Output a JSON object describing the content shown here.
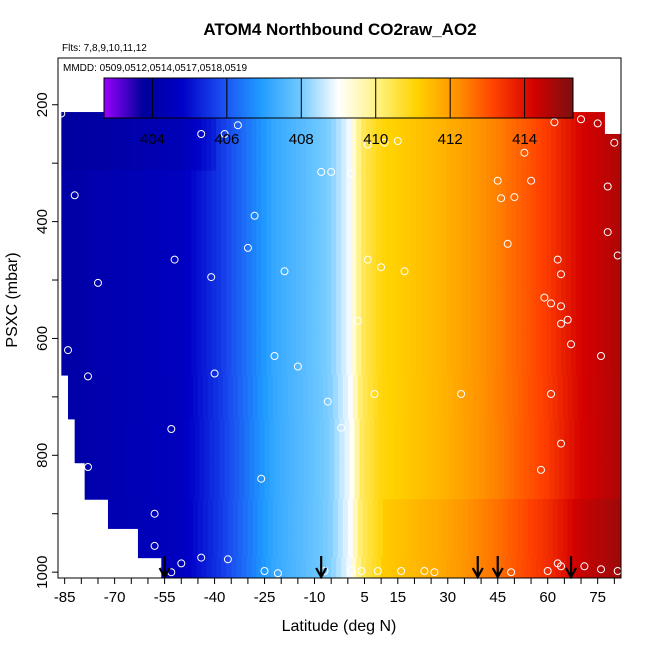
{
  "chart_data": {
    "type": "heatmap",
    "title": "ATOM4 Northbound CO2raw_AO2",
    "subtitle_flights": "Flts: 7,8,9,10,11,12",
    "subtitle_dates": "MMDD: 0509,0512,0514,0517,0518,0519",
    "xlabel": "Latitude (deg N)",
    "ylabel": "PSXC (mbar)",
    "xlim": [
      -87,
      82
    ],
    "ylim": [
      1010,
      120
    ],
    "x_tick_labels": [
      "-85",
      "-70",
      "-55",
      "-40",
      "-25",
      "-10",
      "5",
      "15",
      "30",
      "45",
      "60",
      "75"
    ],
    "x_tick_values": [
      -85,
      -70,
      -55,
      -40,
      -25,
      -10,
      5,
      15,
      30,
      45,
      60,
      75
    ],
    "y_tick_labels": [
      "200",
      "400",
      "600",
      "800",
      "1000"
    ],
    "y_tick_values": [
      200,
      400,
      600,
      800,
      1000
    ],
    "colorbar": {
      "range": [
        402.7,
        415.3
      ],
      "tick_labels": [
        "404",
        "406",
        "408",
        "410",
        "412",
        "414"
      ],
      "tick_values": [
        404,
        406,
        408,
        410,
        412,
        414
      ],
      "colors": [
        "#9a00ff",
        "#00009a",
        "#0000c8",
        "#1a4cf0",
        "#1f9bff",
        "#6fc8ff",
        "#ffffff",
        "#fff280",
        "#ffd200",
        "#ff9400",
        "#ff4000",
        "#d40000",
        "#7a1010"
      ]
    },
    "gradient": [
      {
        "lat": -87,
        "co2": 404.0
      },
      {
        "lat": -50,
        "co2": 404.6
      },
      {
        "lat": -38,
        "co2": 405.6
      },
      {
        "lat": -22,
        "co2": 407.2
      },
      {
        "lat": -5,
        "co2": 408.1
      },
      {
        "lat": 1,
        "co2": 409.0
      },
      {
        "lat": 4,
        "co2": 410.3
      },
      {
        "lat": 10,
        "co2": 411.0
      },
      {
        "lat": 28,
        "co2": 411.6
      },
      {
        "lat": 45,
        "co2": 412.4
      },
      {
        "lat": 60,
        "co2": 413.3
      },
      {
        "lat": 70,
        "co2": 414.2
      },
      {
        "lat": 82,
        "co2": 414.7
      }
    ],
    "coverage": [
      {
        "p": 200,
        "lat_min": -66,
        "lat_max": 56
      },
      {
        "p": 225,
        "lat_min": -86,
        "lat_max": 77
      },
      {
        "p": 275,
        "lat_min": -86,
        "lat_max": 82
      },
      {
        "p": 350,
        "lat_min": -86,
        "lat_max": 82
      },
      {
        "p": 450,
        "lat_min": -86,
        "lat_max": 82
      },
      {
        "p": 550,
        "lat_min": -86,
        "lat_max": 82
      },
      {
        "p": 625,
        "lat_min": -86,
        "lat_max": 82
      },
      {
        "p": 700,
        "lat_min": -84,
        "lat_max": 82
      },
      {
        "p": 775,
        "lat_min": -82,
        "lat_max": 82
      },
      {
        "p": 850,
        "lat_min": -79,
        "lat_max": 82
      },
      {
        "p": 900,
        "lat_min": -72,
        "lat_max": 82
      },
      {
        "p": 950,
        "lat_min": -63,
        "lat_max": 82
      },
      {
        "p": 1000,
        "lat_min": -56,
        "lat_max": 82
      }
    ],
    "sample_points": [
      {
        "lat": -86,
        "p": 215
      },
      {
        "lat": -68,
        "p": 208
      },
      {
        "lat": -82,
        "p": 355
      },
      {
        "lat": -84,
        "p": 620
      },
      {
        "lat": -78,
        "p": 665
      },
      {
        "lat": -75,
        "p": 505
      },
      {
        "lat": -78,
        "p": 820
      },
      {
        "lat": -58,
        "p": 900
      },
      {
        "lat": -58,
        "p": 955
      },
      {
        "lat": -52,
        "p": 465
      },
      {
        "lat": -53,
        "p": 755
      },
      {
        "lat": -50,
        "p": 985
      },
      {
        "lat": -53,
        "p": 1000
      },
      {
        "lat": -44,
        "p": 975
      },
      {
        "lat": -36,
        "p": 978
      },
      {
        "lat": -44,
        "p": 250
      },
      {
        "lat": -40,
        "p": 660
      },
      {
        "lat": -41,
        "p": 495
      },
      {
        "lat": -30,
        "p": 445
      },
      {
        "lat": -28,
        "p": 390
      },
      {
        "lat": -26,
        "p": 840
      },
      {
        "lat": -25,
        "p": 998
      },
      {
        "lat": -21,
        "p": 1002
      },
      {
        "lat": -20,
        "p": 210
      },
      {
        "lat": -37,
        "p": 250
      },
      {
        "lat": -33,
        "p": 235
      },
      {
        "lat": -22,
        "p": 630
      },
      {
        "lat": -19,
        "p": 485
      },
      {
        "lat": -15,
        "p": 648
      },
      {
        "lat": -8,
        "p": 315
      },
      {
        "lat": -5,
        "p": 315
      },
      {
        "lat": 1,
        "p": 318
      },
      {
        "lat": 6,
        "p": 268
      },
      {
        "lat": 11,
        "p": 265
      },
      {
        "lat": 15,
        "p": 262
      },
      {
        "lat": 3,
        "p": 570
      },
      {
        "lat": 6,
        "p": 465
      },
      {
        "lat": 10,
        "p": 478
      },
      {
        "lat": 17,
        "p": 485
      },
      {
        "lat": 8,
        "p": 695
      },
      {
        "lat": -6,
        "p": 708
      },
      {
        "lat": -2,
        "p": 753
      },
      {
        "lat": -7,
        "p": 998
      },
      {
        "lat": 1,
        "p": 998
      },
      {
        "lat": 4,
        "p": 998
      },
      {
        "lat": 9,
        "p": 998
      },
      {
        "lat": 16,
        "p": 998
      },
      {
        "lat": 23,
        "p": 998
      },
      {
        "lat": 26,
        "p": 1000
      },
      {
        "lat": 34,
        "p": 695
      },
      {
        "lat": 46,
        "p": 360
      },
      {
        "lat": 48,
        "p": 438
      },
      {
        "lat": 50,
        "p": 358
      },
      {
        "lat": 49,
        "p": 1000
      },
      {
        "lat": 45,
        "p": 330
      },
      {
        "lat": 53,
        "p": 212
      },
      {
        "lat": 62,
        "p": 230
      },
      {
        "lat": 70,
        "p": 225
      },
      {
        "lat": 75,
        "p": 232
      },
      {
        "lat": 80,
        "p": 265
      },
      {
        "lat": 78,
        "p": 340
      },
      {
        "lat": 78,
        "p": 418
      },
      {
        "lat": 81,
        "p": 458
      },
      {
        "lat": 53,
        "p": 282
      },
      {
        "lat": 55,
        "p": 330
      },
      {
        "lat": 63,
        "p": 465
      },
      {
        "lat": 64,
        "p": 490
      },
      {
        "lat": 61,
        "p": 540
      },
      {
        "lat": 64,
        "p": 545
      },
      {
        "lat": 64,
        "p": 575
      },
      {
        "lat": 59,
        "p": 530
      },
      {
        "lat": 66,
        "p": 568
      },
      {
        "lat": 64,
        "p": 780
      },
      {
        "lat": 61,
        "p": 695
      },
      {
        "lat": 58,
        "p": 825
      },
      {
        "lat": 67,
        "p": 610
      },
      {
        "lat": 76,
        "p": 630
      },
      {
        "lat": 81,
        "p": 998
      },
      {
        "lat": 60,
        "p": 998
      },
      {
        "lat": 64,
        "p": 990
      },
      {
        "lat": 63,
        "p": 985
      },
      {
        "lat": 71,
        "p": 990
      },
      {
        "lat": 76,
        "p": 995
      }
    ],
    "arrows": [
      -55,
      -8,
      39,
      45,
      67
    ]
  }
}
